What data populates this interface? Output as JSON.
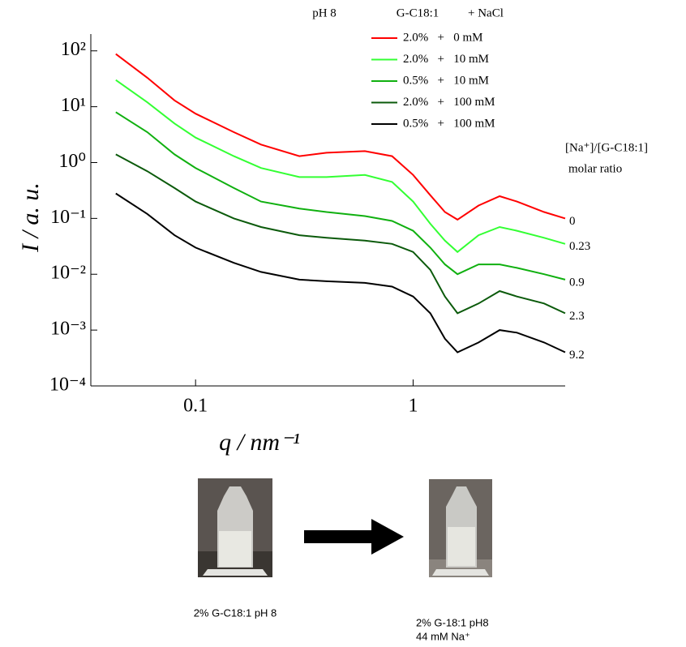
{
  "chart_data": {
    "type": "line",
    "x_label": "q / nm⁻¹",
    "y_label": "I / a. u.",
    "log_x": true,
    "log_y": true,
    "xlim": [
      0.033,
      5
    ],
    "ylim": [
      0.0001,
      200
    ],
    "xticks": [
      0.1,
      1
    ],
    "yticks": [
      {
        "value": 100,
        "label": "10²"
      },
      {
        "value": 10,
        "label": "10¹"
      },
      {
        "value": 1,
        "label": "10⁰"
      },
      {
        "value": 0.1,
        "label": "10⁻¹"
      },
      {
        "value": 0.01,
        "label": "10⁻²"
      },
      {
        "value": 0.001,
        "label": "10⁻³"
      },
      {
        "value": 0.0001,
        "label": "10⁻⁴"
      }
    ],
    "legend_header": [
      "pH 8",
      "G-C18:1",
      "+ NaCl"
    ],
    "ratio_header": [
      "[Na⁺]/[G-C18:1]",
      "molar ratio"
    ],
    "x": [
      0.043,
      0.06,
      0.08,
      0.1,
      0.15,
      0.2,
      0.3,
      0.4,
      0.6,
      0.8,
      1.0,
      1.2,
      1.4,
      1.6,
      2.0,
      2.5,
      3.0,
      4.0,
      5.0
    ],
    "series": [
      {
        "name": "2.0%   +   0 mM",
        "color": "#ff0000",
        "ratio": "0",
        "values": [
          88,
          33,
          13,
          7.5,
          3.5,
          2.1,
          1.3,
          1.5,
          1.6,
          1.3,
          0.6,
          0.26,
          0.13,
          0.095,
          0.17,
          0.25,
          0.2,
          0.13,
          0.1
        ]
      },
      {
        "name": "2.0%   +   10 mM",
        "color": "#33ff33",
        "ratio": "0.23",
        "values": [
          30,
          12,
          5,
          2.8,
          1.3,
          0.8,
          0.55,
          0.55,
          0.6,
          0.45,
          0.2,
          0.08,
          0.04,
          0.025,
          0.05,
          0.07,
          0.06,
          0.045,
          0.035
        ]
      },
      {
        "name": "0.5%   +   10 mM",
        "color": "#10b010",
        "ratio": "0.9",
        "values": [
          8,
          3.5,
          1.4,
          0.8,
          0.35,
          0.2,
          0.15,
          0.13,
          0.11,
          0.09,
          0.06,
          0.03,
          0.015,
          0.01,
          0.015,
          0.015,
          0.013,
          0.01,
          0.008
        ]
      },
      {
        "name": "2.0%   +   100 mM",
        "color": "#0b5a0b",
        "ratio": "2.3",
        "values": [
          1.4,
          0.7,
          0.35,
          0.2,
          0.1,
          0.07,
          0.05,
          0.045,
          0.04,
          0.035,
          0.025,
          0.012,
          0.004,
          0.002,
          0.003,
          0.005,
          0.004,
          0.003,
          0.002
        ]
      },
      {
        "name": "0.5%   +   100 mM",
        "color": "#000000",
        "ratio": "9.2",
        "values": [
          0.28,
          0.12,
          0.05,
          0.03,
          0.016,
          0.011,
          0.008,
          0.0075,
          0.007,
          0.006,
          0.004,
          0.002,
          0.0007,
          0.0004,
          0.0006,
          0.001,
          0.0009,
          0.0006,
          0.0004
        ]
      }
    ]
  },
  "photos": [
    {
      "caption": [
        "2% G-C18:1 pH 8"
      ]
    },
    {
      "caption": [
        "2% G-18:1 pH8",
        "44 mM Na⁺"
      ]
    }
  ]
}
